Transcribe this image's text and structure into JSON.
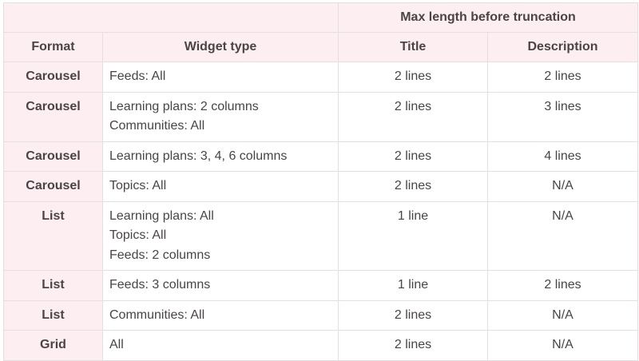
{
  "table": {
    "group_header": "Max length before truncation",
    "headers": [
      "Format",
      "Widget type",
      "Title",
      "Description"
    ],
    "rows": [
      {
        "format": "Carousel",
        "widget": [
          "Feeds: All"
        ],
        "title": "2 lines",
        "description": "2 lines"
      },
      {
        "format": "Carousel",
        "widget": [
          "Learning plans: 2 columns",
          "Communities: All"
        ],
        "title": "2 lines",
        "description": "3 lines"
      },
      {
        "format": "Carousel",
        "widget": [
          "Learning plans: 3, 4, 6 columns"
        ],
        "title": "2 lines",
        "description": "4 lines"
      },
      {
        "format": "Carousel",
        "widget": [
          "Topics: All"
        ],
        "title": "2 lines",
        "description": "N/A"
      },
      {
        "format": "List",
        "widget": [
          "Learning plans: All",
          "Topics: All",
          "Feeds: 2 columns"
        ],
        "title": "1 line",
        "description": "N/A"
      },
      {
        "format": "List",
        "widget": [
          "Feeds: 3 columns"
        ],
        "title": "1 line",
        "description": "2 lines"
      },
      {
        "format": "List",
        "widget": [
          "Communities: All"
        ],
        "title": "2 lines",
        "description": "N/A"
      },
      {
        "format": "Grid",
        "widget": [
          "All"
        ],
        "title": "2 lines",
        "description": "N/A"
      }
    ]
  },
  "colors": {
    "header_bg": "#fdeef2",
    "border": "#e6dfe1",
    "text": "#4a4446"
  }
}
